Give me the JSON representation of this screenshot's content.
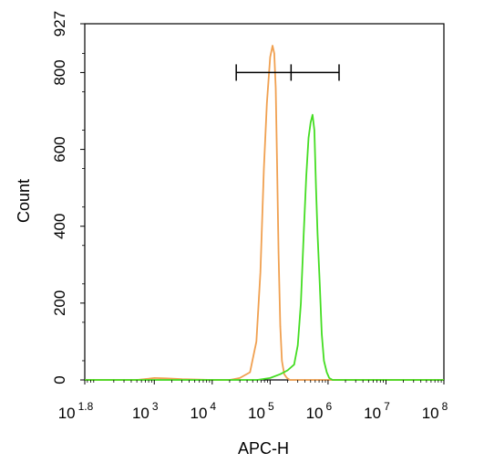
{
  "chart_data": {
    "type": "line",
    "title": "",
    "xlabel": "APC-H",
    "ylabel": "Count",
    "x_scale": "log",
    "xlim": [
      63.1,
      100000000
    ],
    "ylim": [
      0,
      927
    ],
    "x_ticks": [
      {
        "base": "10",
        "exp": "1.8"
      },
      {
        "base": "10",
        "exp": "3"
      },
      {
        "base": "10",
        "exp": "4"
      },
      {
        "base": "10",
        "exp": "5"
      },
      {
        "base": "10",
        "exp": "6"
      },
      {
        "base": "10",
        "exp": "7"
      },
      {
        "base": "10",
        "exp": "8"
      }
    ],
    "y_ticks": [
      "0",
      "200",
      "400",
      "600",
      "800",
      "927"
    ],
    "grid": false,
    "legend": "none",
    "series": [
      {
        "color": "#F0A050",
        "x": [
          63.1,
          500,
          800,
          1000,
          1600,
          3000,
          10000,
          20000,
          30000,
          45000,
          58000,
          68000,
          78000,
          88000,
          100000,
          110000,
          118000,
          125000,
          132000,
          140000,
          150000,
          160000,
          175000,
          195000,
          220000,
          1000000,
          100000000
        ],
        "y": [
          0,
          0,
          3,
          5,
          4,
          2,
          0,
          0,
          5,
          20,
          100,
          280,
          550,
          720,
          840,
          870,
          850,
          760,
          560,
          330,
          140,
          50,
          15,
          5,
          0,
          0,
          0
        ]
      },
      {
        "color": "#44DD22",
        "x": [
          63.1,
          10000,
          60000,
          100000,
          150000,
          200000,
          260000,
          300000,
          340000,
          380000,
          420000,
          460000,
          500000,
          540000,
          580000,
          620000,
          660000,
          720000,
          780000,
          850000,
          950000,
          1050000,
          1200000,
          100000000
        ],
        "y": [
          0,
          0,
          0,
          5,
          15,
          25,
          40,
          90,
          200,
          380,
          530,
          630,
          670,
          690,
          650,
          500,
          380,
          250,
          120,
          50,
          20,
          5,
          0,
          0
        ]
      }
    ],
    "annotations": [
      {
        "type": "range_bar",
        "y": 800,
        "x_start": 26000,
        "x_mid": 230000,
        "x_end": 1550000
      }
    ]
  }
}
